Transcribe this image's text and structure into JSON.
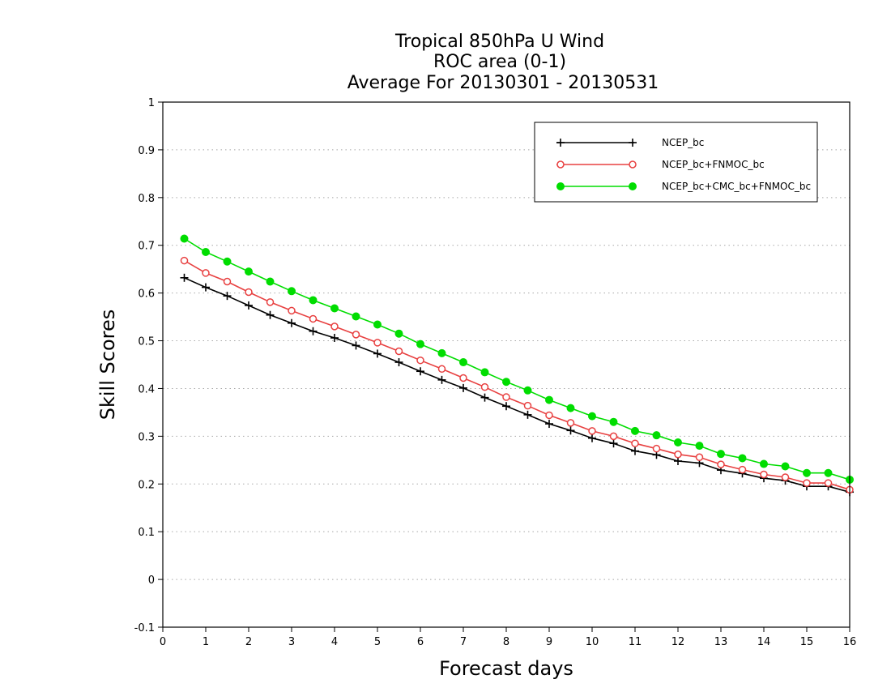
{
  "chart_data": {
    "type": "line",
    "title": [
      "Tropical 850hPa U Wind",
      "ROC area (0-1)",
      "Average For 20130301 - 20130531"
    ],
    "xlabel": "Forecast days",
    "ylabel": "Skill Scores",
    "xlim": [
      0,
      16
    ],
    "ylim": [
      -0.1,
      1
    ],
    "xticks": [
      "0",
      "1",
      "2",
      "3",
      "4",
      "5",
      "6",
      "7",
      "8",
      "9",
      "10",
      "11",
      "12",
      "13",
      "14",
      "15",
      "16"
    ],
    "yticks": [
      "-0.1",
      "0",
      "0.1",
      "0.2",
      "0.3",
      "0.4",
      "0.5",
      "0.6",
      "0.7",
      "0.8",
      "0.9",
      "1"
    ],
    "grid": true,
    "legend_position": "top-right",
    "x": [
      0.5,
      1,
      1.5,
      2,
      2.5,
      3,
      3.5,
      4,
      4.5,
      5,
      5.5,
      6,
      6.5,
      7,
      7.5,
      8,
      8.5,
      9,
      9.5,
      10,
      10.5,
      11,
      11.5,
      12,
      12.5,
      13,
      13.5,
      14,
      14.5,
      15,
      15.5,
      16
    ],
    "series": [
      {
        "name": "NCEP_bc",
        "color": "#000000",
        "marker": "plus",
        "values": [
          0.632,
          0.612,
          0.594,
          0.574,
          0.554,
          0.537,
          0.52,
          0.506,
          0.49,
          0.473,
          0.455,
          0.436,
          0.418,
          0.401,
          0.381,
          0.363,
          0.345,
          0.326,
          0.312,
          0.296,
          0.285,
          0.269,
          0.261,
          0.248,
          0.244,
          0.229,
          0.222,
          0.212,
          0.207,
          0.195,
          0.195,
          0.183
        ]
      },
      {
        "name": "NCEP_bc+FNMOC_bc",
        "color": "#e84040",
        "marker": "open-circle",
        "values": [
          0.668,
          0.642,
          0.624,
          0.602,
          0.581,
          0.563,
          0.546,
          0.53,
          0.513,
          0.496,
          0.478,
          0.459,
          0.441,
          0.422,
          0.403,
          0.382,
          0.364,
          0.344,
          0.328,
          0.311,
          0.3,
          0.285,
          0.274,
          0.262,
          0.256,
          0.241,
          0.23,
          0.22,
          0.214,
          0.202,
          0.202,
          0.188
        ]
      },
      {
        "name": "NCEP_bc+CMC_bc+FNMOC_bc",
        "color": "#00dd00",
        "marker": "filled-circle",
        "values": [
          0.714,
          0.686,
          0.666,
          0.645,
          0.624,
          0.604,
          0.585,
          0.568,
          0.551,
          0.534,
          0.515,
          0.493,
          0.474,
          0.455,
          0.434,
          0.414,
          0.396,
          0.376,
          0.359,
          0.342,
          0.33,
          0.311,
          0.302,
          0.287,
          0.28,
          0.263,
          0.254,
          0.242,
          0.237,
          0.223,
          0.223,
          0.209
        ]
      }
    ]
  }
}
